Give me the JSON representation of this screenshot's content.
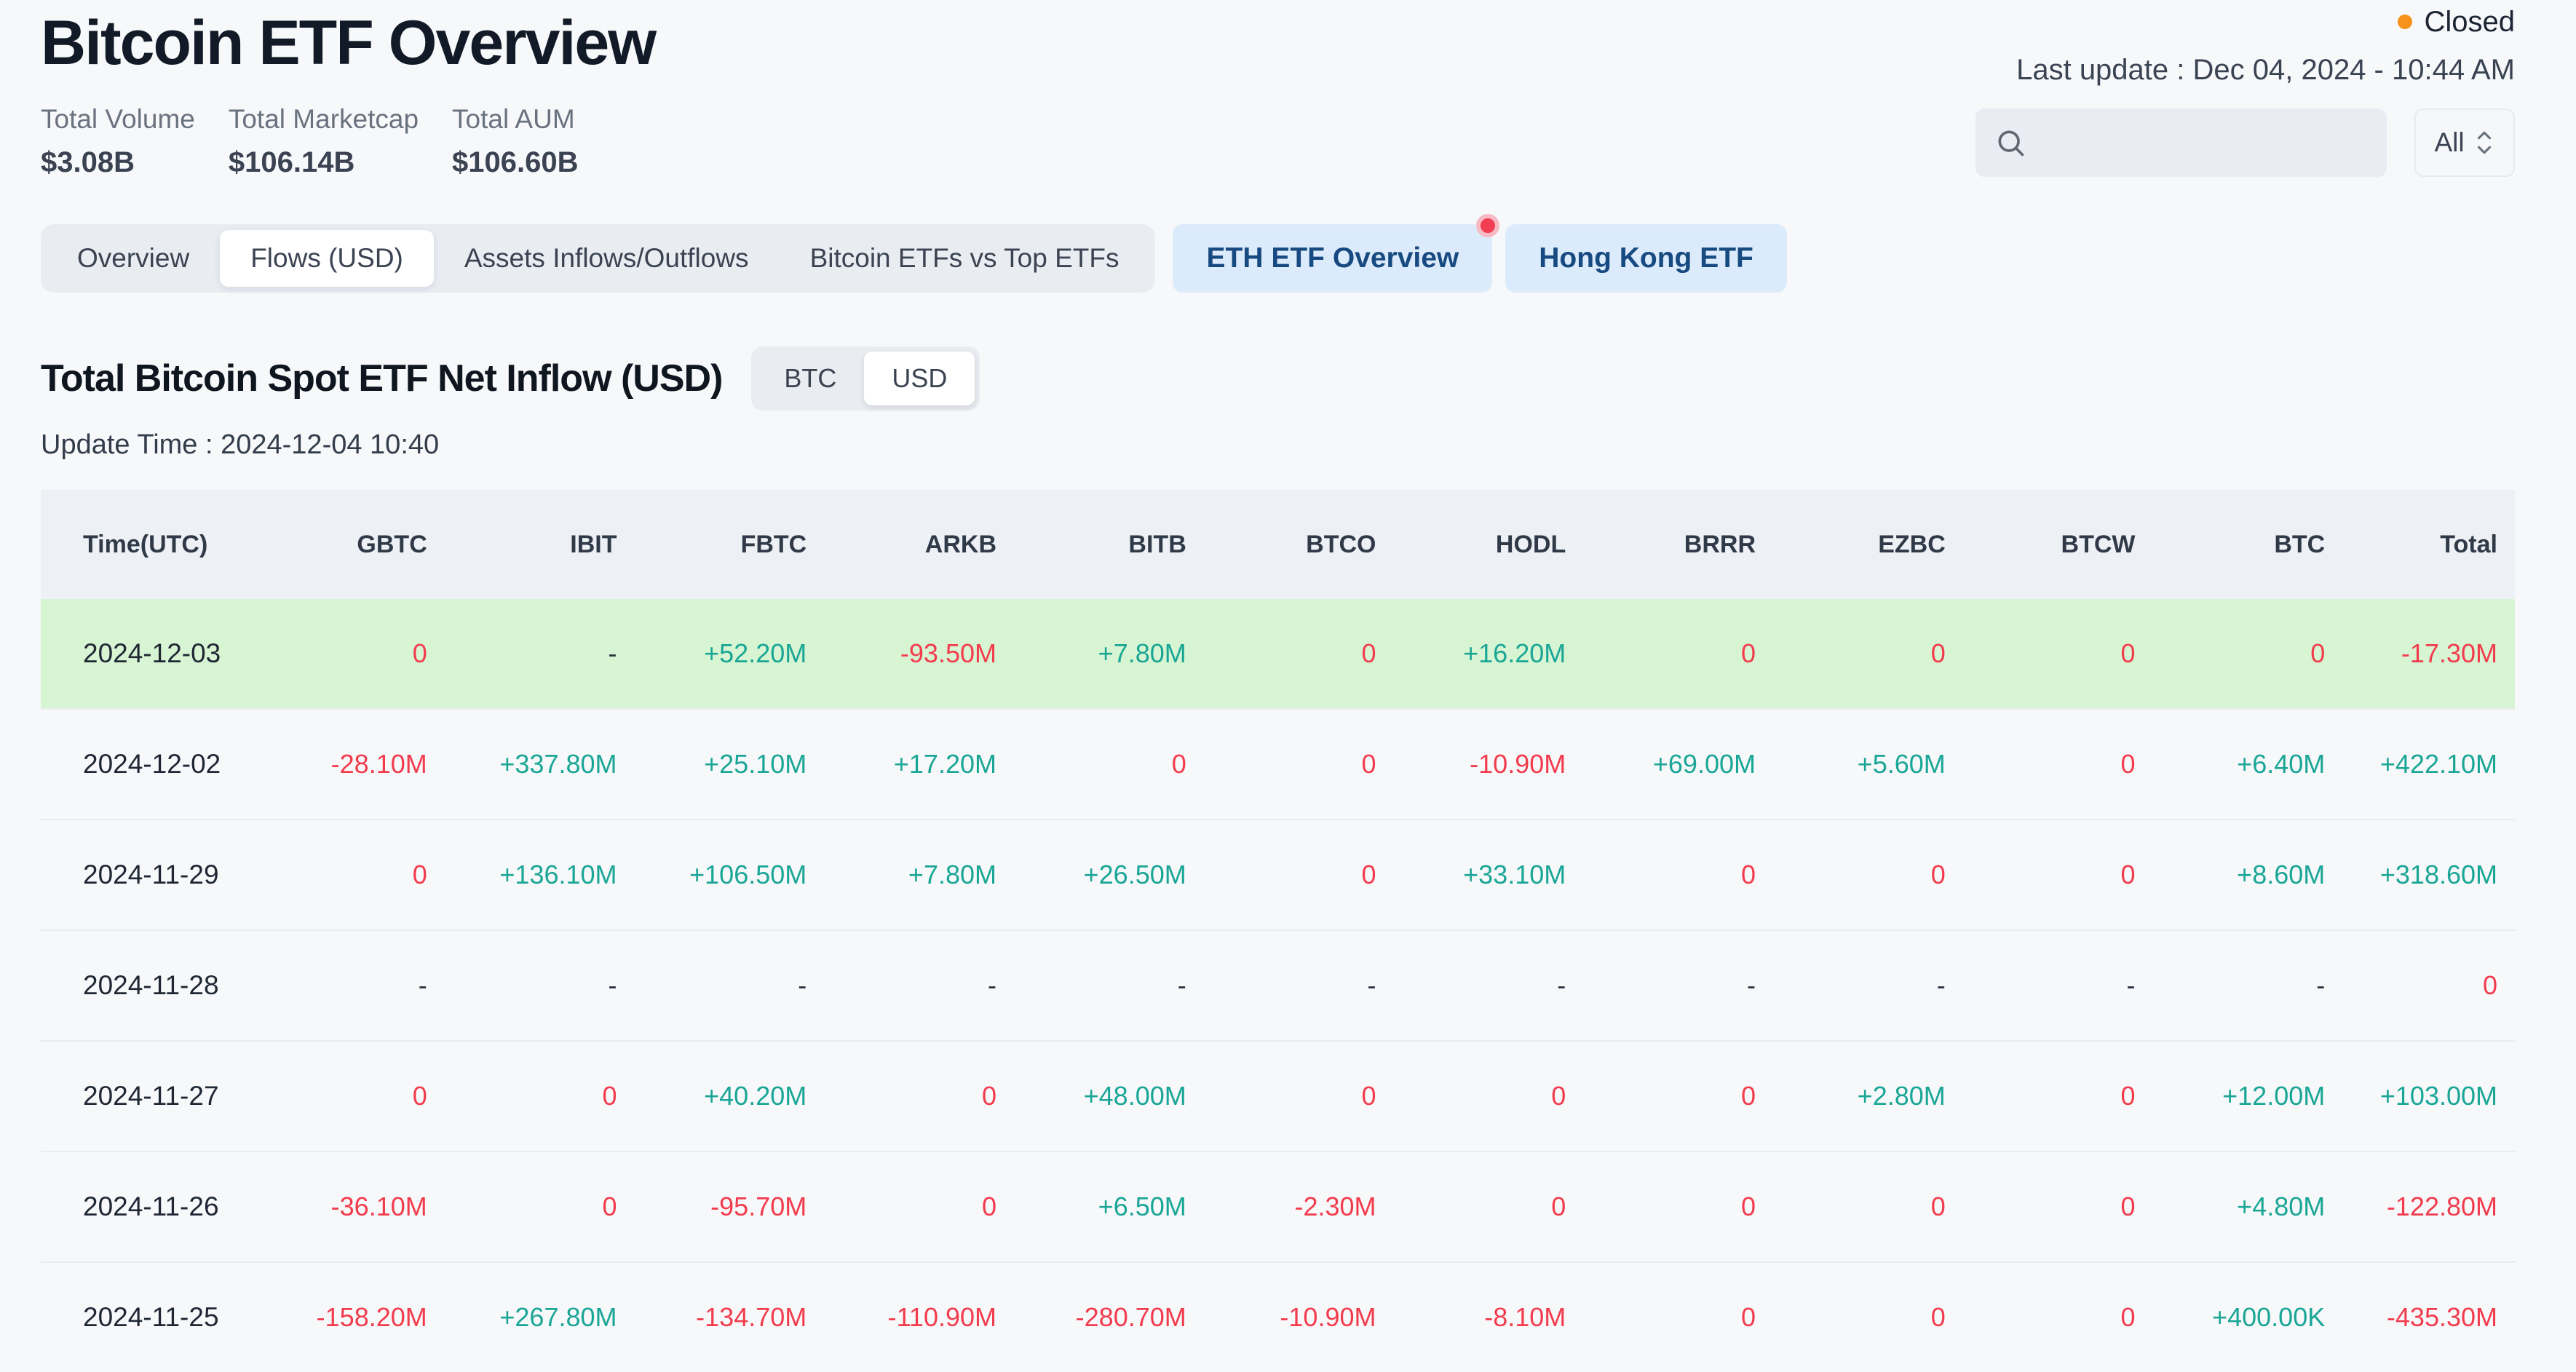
{
  "page": {
    "title": "Bitcoin ETF Overview",
    "market_status": "Closed",
    "last_update": "Last update : Dec 04, 2024 - 10:44 AM"
  },
  "stats": [
    {
      "label": "Total Volume",
      "value": "$3.08B"
    },
    {
      "label": "Total Marketcap",
      "value": "$106.14B"
    },
    {
      "label": "Total AUM",
      "value": "$106.60B"
    }
  ],
  "search": {
    "placeholder": "",
    "filter_label": "All"
  },
  "icons": {
    "search": "magnifier-icon",
    "filter": "up-down-chevrons-icon",
    "status": "orange-dot"
  },
  "tabs": [
    {
      "label": "Overview",
      "active": false
    },
    {
      "label": "Flows (USD)",
      "active": true
    },
    {
      "label": "Assets Inflows/Outflows",
      "active": false
    },
    {
      "label": "Bitcoin ETFs vs Top ETFs",
      "active": false
    }
  ],
  "action_buttons": [
    {
      "label": "ETH ETF Overview",
      "badge": true
    },
    {
      "label": "Hong Kong ETF",
      "badge": false
    }
  ],
  "section": {
    "title": "Total Bitcoin Spot ETF Net Inflow (USD)",
    "toggle_options": [
      "BTC",
      "USD"
    ],
    "toggle_active": "USD",
    "update_time": "Update Time : 2024-12-04 10:40"
  },
  "table": {
    "columns": [
      "Time(UTC)",
      "GBTC",
      "IBIT",
      "FBTC",
      "ARKB",
      "BITB",
      "BTCO",
      "HODL",
      "BRRR",
      "EZBC",
      "BTCW",
      "BTC",
      "Total"
    ],
    "rows": [
      {
        "date": "2024-12-03",
        "highlight": true,
        "cells": [
          "0",
          "-",
          "+52.20M",
          "-93.50M",
          "+7.80M",
          "0",
          "+16.20M",
          "0",
          "0",
          "0",
          "0",
          "-17.30M"
        ]
      },
      {
        "date": "2024-12-02",
        "highlight": false,
        "cells": [
          "-28.10M",
          "+337.80M",
          "+25.10M",
          "+17.20M",
          "0",
          "0",
          "-10.90M",
          "+69.00M",
          "+5.60M",
          "0",
          "+6.40M",
          "+422.10M"
        ]
      },
      {
        "date": "2024-11-29",
        "highlight": false,
        "cells": [
          "0",
          "+136.10M",
          "+106.50M",
          "+7.80M",
          "+26.50M",
          "0",
          "+33.10M",
          "0",
          "0",
          "0",
          "+8.60M",
          "+318.60M"
        ]
      },
      {
        "date": "2024-11-28",
        "highlight": false,
        "cells": [
          "-",
          "-",
          "-",
          "-",
          "-",
          "-",
          "-",
          "-",
          "-",
          "-",
          "-",
          "0"
        ]
      },
      {
        "date": "2024-11-27",
        "highlight": false,
        "cells": [
          "0",
          "0",
          "+40.20M",
          "0",
          "+48.00M",
          "0",
          "0",
          "0",
          "+2.80M",
          "0",
          "+12.00M",
          "+103.00M"
        ]
      },
      {
        "date": "2024-11-26",
        "highlight": false,
        "cells": [
          "-36.10M",
          "0",
          "-95.70M",
          "0",
          "+6.50M",
          "-2.30M",
          "0",
          "0",
          "0",
          "0",
          "+4.80M",
          "-122.80M"
        ]
      },
      {
        "date": "2024-11-25",
        "highlight": false,
        "cells": [
          "-158.20M",
          "+267.80M",
          "-134.70M",
          "-110.90M",
          "-280.70M",
          "-10.90M",
          "-8.10M",
          "0",
          "0",
          "0",
          "+400.00K",
          "-435.30M"
        ]
      }
    ]
  },
  "colors": {
    "positive_green": "#1aa696",
    "negative_red": "#f23c4d",
    "highlight_row_bg": "#d8f5d3",
    "status_dot_orange": "#f7931a",
    "action_button_bg": "#dcebfb",
    "action_button_text": "#174a80",
    "table_header_bg": "#edf1f5",
    "page_bg": "#f7f8fa"
  }
}
